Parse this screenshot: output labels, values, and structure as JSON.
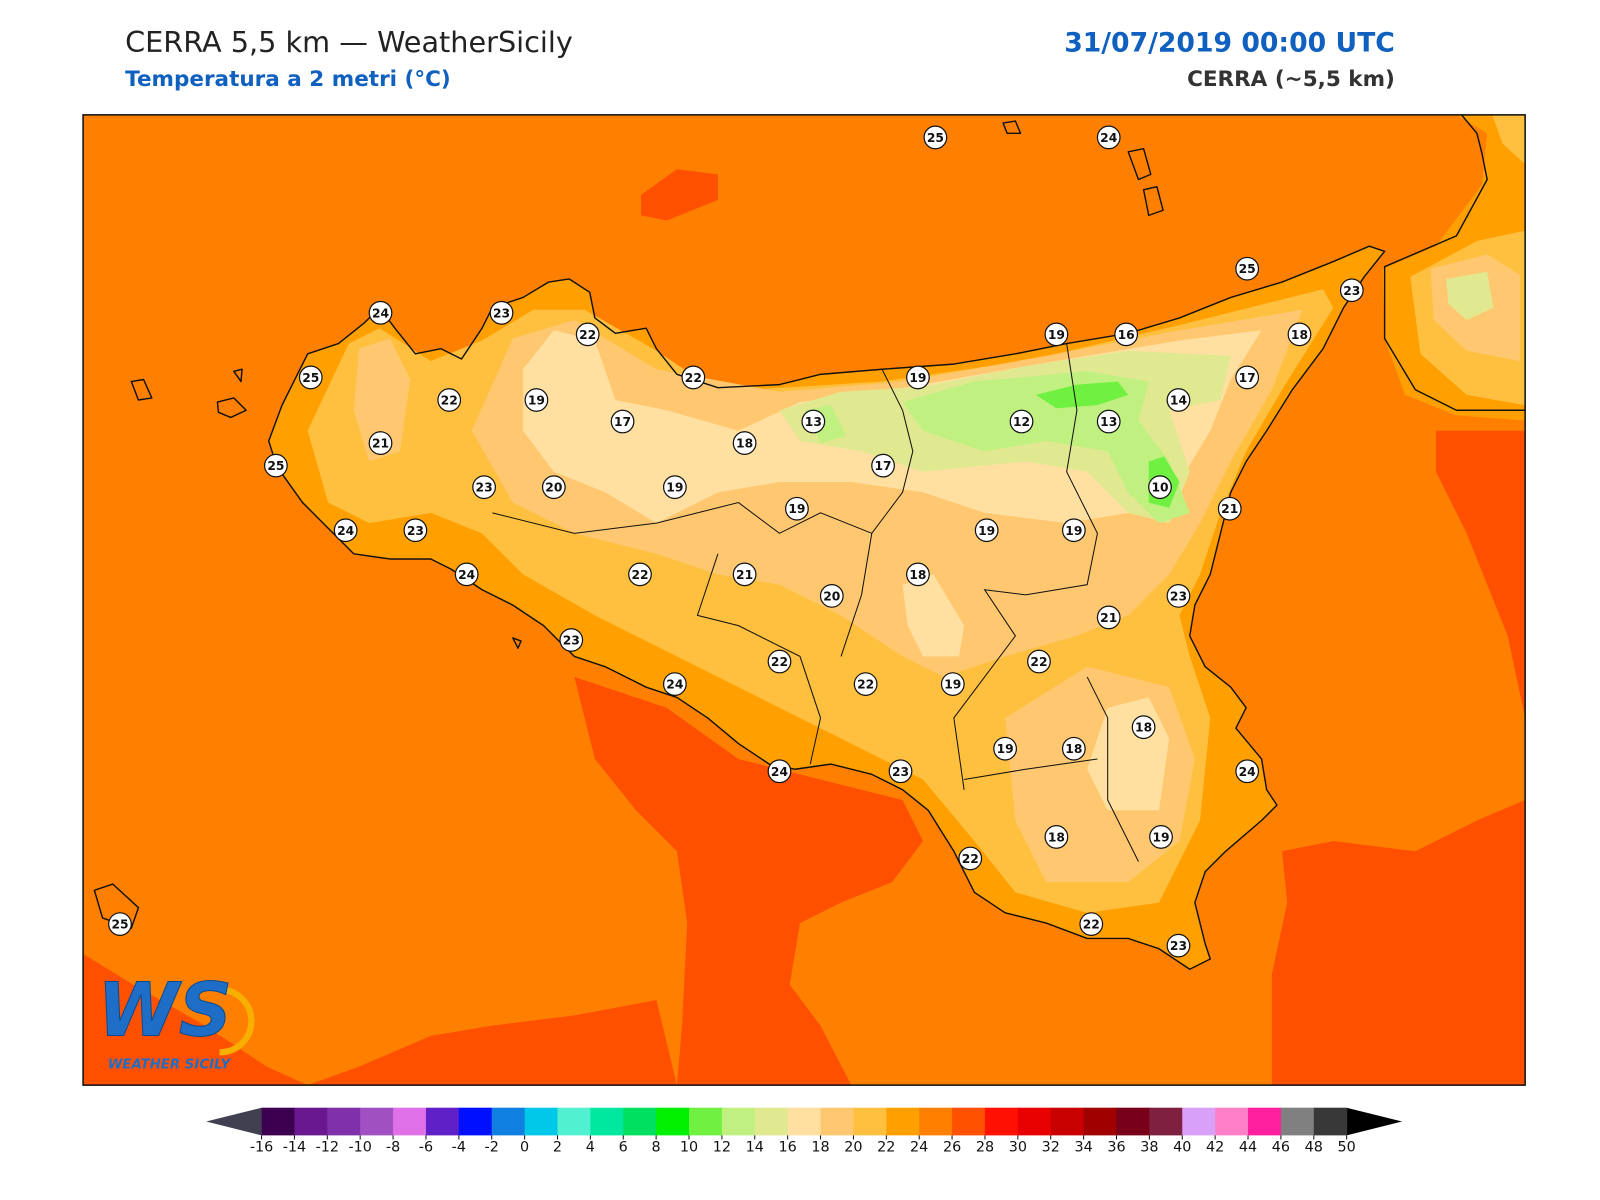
{
  "header": {
    "title": "CERRA 5,5 km — WeatherSicily",
    "subtitle": "Temperatura a 2 metri (°C)",
    "date": "31/07/2019 00:00 UTC",
    "source": "CERRA (~5,5 km)"
  },
  "stations": [
    25,
    24,
    25,
    23,
    24,
    23,
    22,
    19,
    16,
    18,
    25,
    22,
    19,
    17,
    22,
    19,
    14,
    17,
    13,
    12,
    13,
    21,
    18,
    25,
    17,
    23,
    20,
    19,
    10,
    19,
    21,
    24,
    23,
    19,
    19,
    24,
    22,
    21,
    18,
    20,
    23,
    21,
    23,
    22,
    22,
    24,
    22,
    19,
    18,
    19,
    18,
    24,
    23,
    24,
    18,
    19,
    22,
    22,
    23,
    25
  ],
  "colorbar": {
    "ticks": [
      -16,
      -14,
      -12,
      -10,
      -8,
      -6,
      -4,
      -2,
      0,
      2,
      4,
      6,
      8,
      10,
      12,
      14,
      16,
      18,
      20,
      22,
      24,
      26,
      28,
      30,
      32,
      34,
      36,
      38,
      40,
      42,
      44,
      46,
      48,
      50
    ],
    "colors": [
      "#3d0050",
      "#6a1890",
      "#8030a8",
      "#a050c0",
      "#e070e8",
      "#6020c8",
      "#0010ff",
      "#1080e0",
      "#00c8e8",
      "#50f0d0",
      "#00e8a0",
      "#00e060",
      "#00f000",
      "#70f040",
      "#c0f080",
      "#e0e890",
      "#ffe0a0",
      "#ffc870",
      "#ffc040",
      "#ffa000",
      "#ff8000",
      "#ff5000",
      "#ff1000",
      "#e80000",
      "#c80000",
      "#a00000",
      "#780018",
      "#802040",
      "#d8a0f8",
      "#ff80c8",
      "#ff20a0",
      "#808080",
      "#383838"
    ],
    "under_color": "#404050",
    "over_color": "#000000"
  },
  "logo": {
    "mark": "WS",
    "text": "WEATHER SICILY"
  }
}
